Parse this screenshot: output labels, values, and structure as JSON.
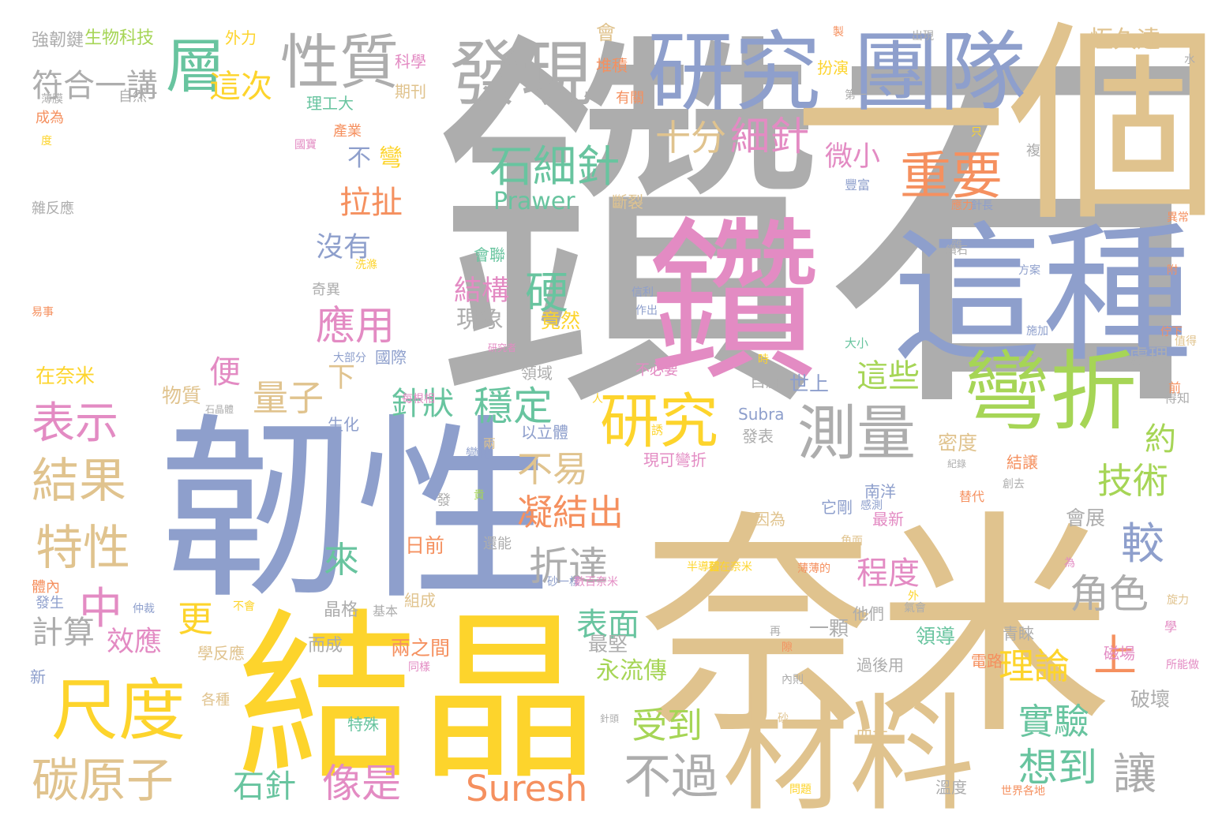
{
  "palette": {
    "gray": "#adadad",
    "tan": "#e0c38e",
    "purple": "#8e9fcc",
    "pink": "#e38bc3",
    "yellow": "#fdd42c",
    "green": "#a6d556",
    "teal": "#68c49f",
    "orange": "#f5905f"
  },
  "words": [
    {
      "text": "鑽石",
      "color": "gray"
    },
    {
      "text": "一個",
      "color": "tan"
    },
    {
      "text": "鑽",
      "color": "pink"
    },
    {
      "text": "這種",
      "color": "purple"
    },
    {
      "text": "韌性",
      "color": "purple"
    },
    {
      "text": "奈米",
      "color": "tan"
    },
    {
      "text": "結晶",
      "color": "yellow"
    },
    {
      "text": "材料",
      "color": "tan"
    },
    {
      "text": "研究",
      "color": "purple"
    },
    {
      "text": "團隊",
      "color": "purple"
    },
    {
      "text": "發現",
      "color": "gray"
    },
    {
      "text": "性質",
      "color": "gray"
    },
    {
      "text": "層",
      "color": "teal"
    },
    {
      "text": "符合一講",
      "color": "gray"
    },
    {
      "text": "這次",
      "color": "yellow"
    },
    {
      "text": "彎折",
      "color": "green"
    },
    {
      "text": "研究",
      "color": "yellow"
    },
    {
      "text": "測量",
      "color": "gray"
    },
    {
      "text": "重要",
      "color": "orange"
    },
    {
      "text": "石細針",
      "color": "teal"
    },
    {
      "text": "十分",
      "color": "tan"
    },
    {
      "text": "細針",
      "color": "pink"
    },
    {
      "text": "微小",
      "color": "pink"
    },
    {
      "text": "尺度",
      "color": "yellow"
    },
    {
      "text": "碳原子",
      "color": "tan"
    },
    {
      "text": "結果",
      "color": "tan"
    },
    {
      "text": "特性",
      "color": "tan"
    },
    {
      "text": "表示",
      "color": "pink"
    },
    {
      "text": "不過",
      "color": "gray"
    },
    {
      "text": "Suresh",
      "color": "orange"
    },
    {
      "text": "讓",
      "color": "gray"
    },
    {
      "text": "想到",
      "color": "teal"
    },
    {
      "text": "實驗",
      "color": "teal"
    },
    {
      "text": "技術",
      "color": "green"
    },
    {
      "text": "較",
      "color": "purple"
    },
    {
      "text": "角色",
      "color": "gray"
    },
    {
      "text": "理論",
      "color": "yellow"
    },
    {
      "text": "上",
      "color": "orange"
    },
    {
      "text": "程度",
      "color": "pink"
    },
    {
      "text": "這些",
      "color": "green"
    },
    {
      "text": "約",
      "color": "green"
    },
    {
      "text": "受到",
      "color": "green"
    },
    {
      "text": "表面",
      "color": "teal"
    },
    {
      "text": "永流傳",
      "color": "green"
    },
    {
      "text": "最堅",
      "color": "gray"
    },
    {
      "text": "像是",
      "color": "pink"
    },
    {
      "text": "石針",
      "color": "teal"
    },
    {
      "text": "中",
      "color": "pink"
    },
    {
      "text": "更",
      "color": "yellow"
    },
    {
      "text": "量子",
      "color": "tan"
    },
    {
      "text": "下",
      "color": "tan"
    },
    {
      "text": "穩定",
      "color": "teal"
    },
    {
      "text": "針狀",
      "color": "teal"
    },
    {
      "text": "不易",
      "color": "tan"
    },
    {
      "text": "凝結出",
      "color": "orange"
    },
    {
      "text": "折達",
      "color": "gray"
    },
    {
      "text": "來",
      "color": "teal"
    },
    {
      "text": "應用",
      "color": "pink"
    },
    {
      "text": "硬",
      "color": "teal"
    },
    {
      "text": "結構",
      "color": "pink"
    },
    {
      "text": "現象",
      "color": "gray"
    },
    {
      "text": "竟然",
      "color": "yellow"
    },
    {
      "text": "拉扯",
      "color": "orange"
    },
    {
      "text": "沒有",
      "color": "purple"
    },
    {
      "text": "不",
      "color": "purple"
    },
    {
      "text": "彎",
      "color": "yellow"
    },
    {
      "text": "Prawer",
      "color": "teal"
    },
    {
      "text": "會",
      "color": "tan"
    },
    {
      "text": "堆積",
      "color": "orange"
    },
    {
      "text": "恆久遠",
      "color": "tan"
    },
    {
      "text": "便",
      "color": "pink"
    },
    {
      "text": "計算",
      "color": "gray"
    },
    {
      "text": "效應",
      "color": "pink"
    },
    {
      "text": "物質",
      "color": "tan"
    },
    {
      "text": "在奈米",
      "color": "yellow"
    },
    {
      "text": "國際",
      "color": "purple"
    },
    {
      "text": "生化",
      "color": "purple"
    },
    {
      "text": "世上",
      "color": "purple"
    },
    {
      "text": "自旋",
      "color": "gray"
    },
    {
      "text": "發表",
      "color": "gray"
    },
    {
      "text": "現可彎折",
      "color": "pink"
    },
    {
      "text": "它剛",
      "color": "purple"
    },
    {
      "text": "南洋",
      "color": "purple"
    },
    {
      "text": "最新",
      "color": "pink"
    },
    {
      "text": "因為",
      "color": "tan"
    },
    {
      "text": "一顆",
      "color": "gray"
    },
    {
      "text": "領導",
      "color": "teal"
    },
    {
      "text": "電路",
      "color": "orange"
    },
    {
      "text": "會展",
      "color": "gray"
    },
    {
      "text": "破壞",
      "color": "gray"
    },
    {
      "text": "處理",
      "color": "gray"
    },
    {
      "text": "四方",
      "color": "tan"
    },
    {
      "text": "溫度",
      "color": "gray"
    },
    {
      "text": "日前",
      "color": "orange"
    },
    {
      "text": "組成",
      "color": "tan"
    },
    {
      "text": "晶格",
      "color": "gray"
    },
    {
      "text": "而成",
      "color": "gray"
    },
    {
      "text": "兩之間",
      "color": "orange"
    },
    {
      "text": "學反應",
      "color": "tan"
    },
    {
      "text": "他們",
      "color": "gray"
    },
    {
      "text": "青睞",
      "color": "gray"
    },
    {
      "text": "過後用",
      "color": "gray"
    },
    {
      "text": "磁場",
      "color": "pink"
    },
    {
      "text": "結譲",
      "color": "orange"
    },
    {
      "text": "密度",
      "color": "tan"
    },
    {
      "text": "領域",
      "color": "gray"
    },
    {
      "text": "不必要",
      "color": "pink"
    },
    {
      "text": "以立體",
      "color": "purple"
    },
    {
      "text": "Subra",
      "color": "purple"
    },
    {
      "text": "大小",
      "color": "teal"
    },
    {
      "text": "強韌鍵",
      "color": "gray"
    },
    {
      "text": "生物科技",
      "color": "green"
    },
    {
      "text": "外力",
      "color": "yellow"
    },
    {
      "text": "科學",
      "color": "pink"
    },
    {
      "text": "理工大",
      "color": "teal"
    },
    {
      "text": "期刊",
      "color": "tan"
    },
    {
      "text": "有關",
      "color": "orange"
    },
    {
      "text": "自然",
      "color": "gray"
    },
    {
      "text": "產業",
      "color": "orange"
    },
    {
      "text": "成為",
      "color": "orange"
    },
    {
      "text": "扮演",
      "color": "yellow"
    },
    {
      "text": "斷裂",
      "color": "tan"
    },
    {
      "text": "豐富",
      "color": "purple"
    },
    {
      "text": "雜反應",
      "color": "gray"
    },
    {
      "text": "會聯",
      "color": "teal"
    },
    {
      "text": "奇異",
      "color": "gray"
    },
    {
      "text": "大部分",
      "color": "purple"
    },
    {
      "text": "人",
      "color": "yellow"
    },
    {
      "text": "兩",
      "color": "tan"
    },
    {
      "text": "發",
      "color": "gray"
    },
    {
      "text": "還能",
      "color": "gray"
    },
    {
      "text": "體內",
      "color": "orange"
    },
    {
      "text": "發生",
      "color": "purple"
    },
    {
      "text": "基本",
      "color": "gray"
    },
    {
      "text": "新",
      "color": "purple"
    },
    {
      "text": "各種",
      "color": "tan"
    },
    {
      "text": "特殊",
      "color": "teal"
    },
    {
      "text": "半導體",
      "color": "yellow"
    },
    {
      "text": "石在奈米",
      "color": "yellow"
    },
    {
      "text": "薄薄的",
      "color": "orange"
    },
    {
      "text": "變化",
      "color": "purple"
    },
    {
      "text": "世界各地",
      "color": "orange"
    },
    {
      "text": "所能做",
      "color": "pink"
    },
    {
      "text": "得知",
      "color": "gray"
    },
    {
      "text": "方案",
      "color": "purple"
    },
    {
      "text": "前",
      "color": "orange"
    },
    {
      "text": "學",
      "color": "pink"
    },
    {
      "text": "為",
      "color": "pink"
    },
    {
      "text": "替代",
      "color": "orange"
    },
    {
      "text": "感測",
      "color": "purple"
    },
    {
      "text": "紀錄",
      "color": "gray"
    },
    {
      "text": "旋力",
      "color": "tan"
    },
    {
      "text": "仲裁",
      "color": "purple"
    },
    {
      "text": "水",
      "color": "gray"
    },
    {
      "text": "複",
      "color": "gray"
    },
    {
      "text": "只",
      "color": "yellow"
    },
    {
      "text": "第一",
      "color": "gray"
    },
    {
      "text": "製",
      "color": "orange"
    },
    {
      "text": "出現",
      "color": "gray"
    },
    {
      "text": "國寶",
      "color": "pink"
    },
    {
      "text": "度",
      "color": "yellow"
    },
    {
      "text": "薄膜",
      "color": "gray"
    },
    {
      "text": "洗滌",
      "color": "yellow"
    },
    {
      "text": "易事",
      "color": "orange"
    },
    {
      "text": "作出",
      "color": "purple"
    },
    {
      "text": "信利",
      "color": "purple"
    },
    {
      "text": "研究者",
      "color": "pink"
    },
    {
      "text": "石晶體",
      "color": "gray"
    },
    {
      "text": "每根相",
      "color": "pink"
    },
    {
      "text": "砂一樣",
      "color": "purple"
    },
    {
      "text": "數百奈米",
      "color": "pink"
    },
    {
      "text": "不會",
      "color": "yellow"
    },
    {
      "text": "同樣",
      "color": "pink"
    },
    {
      "text": "砂",
      "color": "tan"
    },
    {
      "text": "針頭",
      "color": "gray"
    },
    {
      "text": "再",
      "color": "gray"
    },
    {
      "text": "隙",
      "color": "orange"
    },
    {
      "text": "附",
      "color": "orange"
    },
    {
      "text": "異常",
      "color": "orange"
    },
    {
      "text": "應力",
      "color": "orange"
    },
    {
      "text": "針長",
      "color": "purple"
    },
    {
      "text": "施加",
      "color": "purple"
    },
    {
      "text": "內則",
      "color": "gray"
    },
    {
      "text": "問題",
      "color": "yellow"
    },
    {
      "text": "氣會",
      "color": "gray"
    },
    {
      "text": "角面",
      "color": "tan"
    },
    {
      "text": "外",
      "color": "yellow"
    },
    {
      "text": "時",
      "color": "yellow"
    },
    {
      "text": "貴",
      "color": "green"
    },
    {
      "text": "創去",
      "color": "gray"
    },
    {
      "text": "佇下",
      "color": "orange"
    },
    {
      "text": "雜",
      "color": "gray"
    },
    {
      "text": "值得",
      "color": "tan"
    },
    {
      "text": "誘",
      "color": "yellow"
    },
    {
      "text": "鑽石",
      "color": "gray"
    }
  ]
}
